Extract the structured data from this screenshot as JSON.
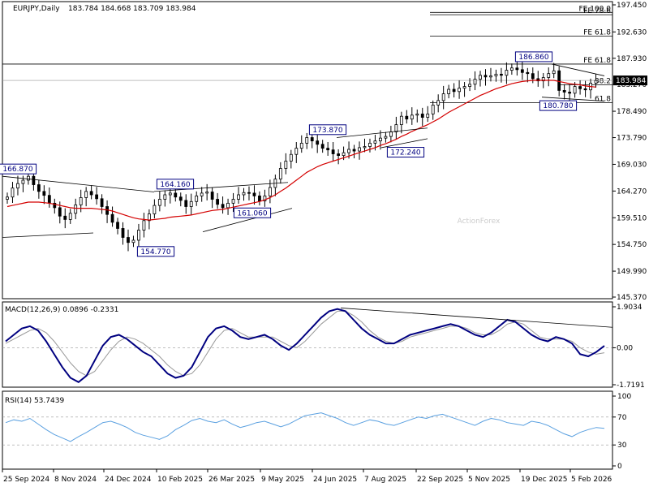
{
  "header": {
    "symbol": "EURJPY,Daily",
    "ohlc": "183.784 184.668 183.709 183.984"
  },
  "watermark": "ActionForex",
  "colors": {
    "candle": "#000000",
    "ma": "#d40000",
    "macd": "#000080",
    "signal": "#999999",
    "rsi": "#5aa0e0",
    "label_border": "#000080",
    "fib": "#000000",
    "price_box": "#000000"
  },
  "chart_data": [
    {
      "type": "candlestick",
      "name": "main",
      "ylim": [
        145.37,
        197.45
      ],
      "y_ticks": [
        "197.450",
        "192.630",
        "187.930",
        "183.270",
        "178.490",
        "173.790",
        "169.030",
        "164.270",
        "159.510",
        "154.750",
        "149.990",
        "145.370"
      ],
      "x_ticks": [
        "25 Sep 2024",
        "8 Nov 2024",
        "24 Dec 2024",
        "10 Feb 2025",
        "26 Mar 2025",
        "9 May 2025",
        "24 Jun 2025",
        "7 Aug 2025",
        "22 Sep 2025",
        "5 Nov 2025",
        "19 Dec 2025",
        "5 Feb 2026"
      ],
      "current_price": "183.984",
      "close_series": [
        163.2,
        164.8,
        165.6,
        166.2,
        166.9,
        165.4,
        164.2,
        163.5,
        162.1,
        161.3,
        159.8,
        159.2,
        160.3,
        161.8,
        163.1,
        164.2,
        163.6,
        162.9,
        161.5,
        160.1,
        158.7,
        157.6,
        156.0,
        155.1,
        155.5,
        157.3,
        159.0,
        160.2,
        161.7,
        162.8,
        163.6,
        163.9,
        163.2,
        162.6,
        161.5,
        162.4,
        163.4,
        163.9,
        164.1,
        162.8,
        161.9,
        161.3,
        162.1,
        162.8,
        163.6,
        164.0,
        163.9,
        163.4,
        162.5,
        163.4,
        164.9,
        166.4,
        168.3,
        169.6,
        170.8,
        171.9,
        172.8,
        173.8,
        173.2,
        172.6,
        171.9,
        171.6,
        170.9,
        170.6,
        171.1,
        171.7,
        171.4,
        172.0,
        172.2,
        172.8,
        173.2,
        173.7,
        174.0,
        174.8,
        176.1,
        177.6,
        177.1,
        177.8,
        178.0,
        177.4,
        178.0,
        179.6,
        180.4,
        181.6,
        182.4,
        182.0,
        182.6,
        182.9,
        183.3,
        184.2,
        184.9,
        184.6,
        184.8,
        185.1,
        184.9,
        185.8,
        186.2,
        185.9,
        185.4,
        185.2,
        184.3,
        183.9,
        184.5,
        185.2,
        185.7,
        182.2,
        181.9,
        181.7,
        182.9,
        182.5,
        182.3,
        183.5,
        183.984
      ],
      "ma_series": [
        161.5,
        161.7,
        161.9,
        162.1,
        162.3,
        162.3,
        162.3,
        162.2,
        162.1,
        161.9,
        161.7,
        161.5,
        161.3,
        161.2,
        161.2,
        161.2,
        161.2,
        161.1,
        161.0,
        160.9,
        160.7,
        160.4,
        160.1,
        159.8,
        159.5,
        159.3,
        159.2,
        159.1,
        159.2,
        159.3,
        159.4,
        159.6,
        159.7,
        159.8,
        159.9,
        160.0,
        160.2,
        160.4,
        160.6,
        160.8,
        160.9,
        161.0,
        161.2,
        161.4,
        161.6,
        161.8,
        162.0,
        162.2,
        162.4,
        162.7,
        163.1,
        163.6,
        164.2,
        164.8,
        165.5,
        166.2,
        166.9,
        167.6,
        168.1,
        168.6,
        169.0,
        169.3,
        169.6,
        169.9,
        170.2,
        170.5,
        170.8,
        171.1,
        171.4,
        171.7,
        172.0,
        172.4,
        172.7,
        173.1,
        173.5,
        174.0,
        174.4,
        174.9,
        175.3,
        175.7,
        176.1,
        176.6,
        177.1,
        177.7,
        178.3,
        178.8,
        179.3,
        179.8,
        180.3,
        180.8,
        181.3,
        181.7,
        182.1,
        182.5,
        182.8,
        183.1,
        183.4,
        183.6,
        183.8,
        183.9,
        184.0,
        184.0,
        184.0,
        184.0,
        184.0,
        183.8,
        183.6,
        183.4,
        183.3,
        183.2,
        183.0,
        182.9,
        182.8
      ],
      "labels": [
        "166.870",
        "164.160",
        "154.770",
        "161.060",
        "173.870",
        "172.240",
        "186.860",
        "180.780"
      ],
      "fib_levels": [
        {
          "label": "FE 100.0",
          "value": "196.1"
        },
        {
          "label": "FE 78.6",
          "value": "195.7"
        },
        {
          "label": "FE 61.8",
          "value": "191.9"
        },
        {
          "label": "FE 61.8",
          "value": "186.9"
        },
        {
          "label": "38.2",
          "value": "183.2"
        },
        {
          "label": "61.8",
          "value": "180.0"
        }
      ]
    },
    {
      "type": "line",
      "name": "macd-panel",
      "title": "MACD(12,26,9) 0.0896 -0.2331",
      "ylim": [
        -1.7191,
        1.9034
      ],
      "y_ticks": [
        "1.9034",
        "0.00",
        "-1.7191"
      ],
      "series": [
        {
          "name": "MACD",
          "values": [
            0.3,
            0.6,
            0.9,
            1.0,
            0.8,
            0.3,
            -0.3,
            -0.9,
            -1.4,
            -1.6,
            -1.3,
            -0.6,
            0.1,
            0.5,
            0.6,
            0.4,
            0.1,
            -0.2,
            -0.4,
            -0.8,
            -1.2,
            -1.4,
            -1.3,
            -0.9,
            -0.2,
            0.5,
            0.9,
            1.0,
            0.8,
            0.5,
            0.4,
            0.5,
            0.6,
            0.4,
            0.1,
            -0.1,
            0.2,
            0.6,
            1.0,
            1.4,
            1.7,
            1.8,
            1.7,
            1.3,
            0.9,
            0.6,
            0.4,
            0.2,
            0.2,
            0.4,
            0.6,
            0.7,
            0.8,
            0.9,
            1.0,
            1.1,
            1.0,
            0.8,
            0.6,
            0.5,
            0.7,
            1.0,
            1.3,
            1.2,
            0.9,
            0.6,
            0.4,
            0.3,
            0.5,
            0.4,
            0.2,
            -0.3,
            -0.4,
            -0.2,
            0.0896
          ]
        },
        {
          "name": "Signal",
          "values": [
            0.2,
            0.4,
            0.6,
            0.8,
            0.9,
            0.7,
            0.3,
            -0.2,
            -0.7,
            -1.1,
            -1.3,
            -1.1,
            -0.6,
            -0.1,
            0.3,
            0.5,
            0.4,
            0.2,
            -0.1,
            -0.4,
            -0.8,
            -1.1,
            -1.3,
            -1.2,
            -0.8,
            -0.2,
            0.4,
            0.8,
            0.9,
            0.7,
            0.5,
            0.5,
            0.5,
            0.5,
            0.3,
            0.1,
            0.0,
            0.3,
            0.7,
            1.1,
            1.4,
            1.7,
            1.7,
            1.5,
            1.2,
            0.8,
            0.5,
            0.3,
            0.2,
            0.3,
            0.5,
            0.6,
            0.7,
            0.8,
            0.9,
            1.0,
            1.0,
            0.9,
            0.7,
            0.6,
            0.6,
            0.8,
            1.1,
            1.2,
            1.1,
            0.8,
            0.5,
            0.4,
            0.4,
            0.4,
            0.3,
            0.0,
            -0.2,
            -0.3,
            -0.2331
          ]
        }
      ]
    },
    {
      "type": "line",
      "name": "rsi-panel",
      "title": "RSI(14) 53.7439",
      "ylim": [
        0,
        100
      ],
      "y_ticks": [
        "100",
        "70",
        "30",
        "0"
      ],
      "levels": [
        70,
        30
      ],
      "values": [
        62,
        66,
        64,
        68,
        60,
        52,
        45,
        40,
        35,
        42,
        48,
        55,
        62,
        64,
        60,
        55,
        48,
        44,
        41,
        38,
        43,
        52,
        58,
        65,
        68,
        64,
        62,
        66,
        60,
        55,
        58,
        62,
        64,
        60,
        56,
        60,
        66,
        72,
        74,
        76,
        72,
        68,
        62,
        58,
        62,
        66,
        64,
        60,
        58,
        62,
        66,
        70,
        68,
        72,
        74,
        70,
        66,
        62,
        58,
        64,
        68,
        66,
        62,
        60,
        58,
        64,
        62,
        58,
        52,
        46,
        42,
        48,
        52,
        55,
        53.7439
      ]
    }
  ]
}
